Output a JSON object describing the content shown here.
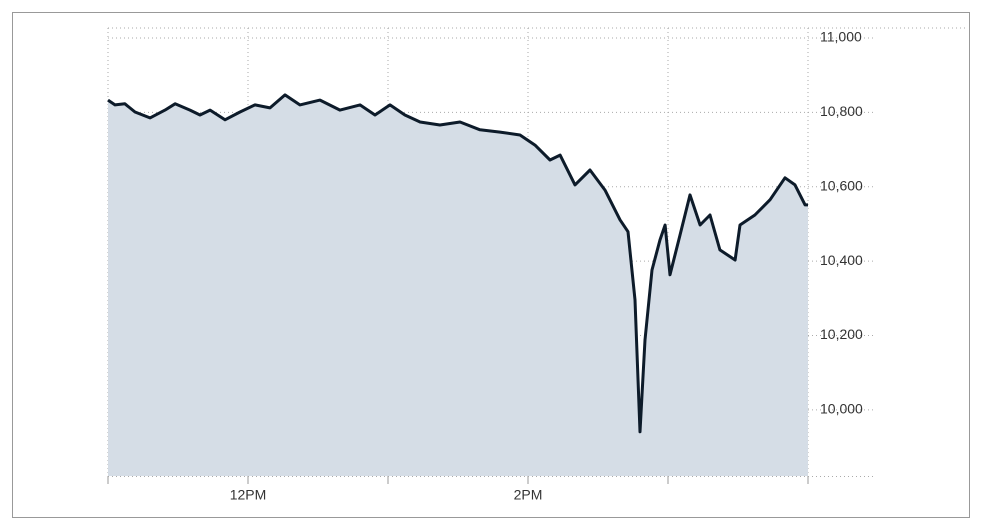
{
  "chart_data": {
    "type": "area",
    "x": [
      11,
      11.05,
      11.121,
      11.193,
      11.3,
      11.407,
      11.479,
      11.586,
      11.657,
      11.729,
      11.836,
      11.943,
      12.05,
      12.157,
      12.264,
      12.371,
      12.514,
      12.657,
      12.8,
      12.907,
      13.014,
      13.121,
      13.229,
      13.371,
      13.514,
      13.657,
      13.8,
      13.943,
      14.05,
      14.157,
      14.229,
      14.336,
      14.443,
      14.55,
      14.657,
      14.714,
      14.764,
      14.8,
      14.836,
      14.886,
      14.943,
      14.979,
      15.014,
      15.086,
      15.157,
      15.229,
      15.3,
      15.371,
      15.479,
      15.514,
      15.621,
      15.729,
      15.836,
      15.907,
      15.979,
      16
    ],
    "values": [
      10833,
      10820,
      10823,
      10801,
      10785,
      10806,
      10823,
      10806,
      10793,
      10806,
      10780,
      10801,
      10820,
      10812,
      10847,
      10820,
      10833,
      10806,
      10820,
      10793,
      10820,
      10793,
      10774,
      10766,
      10774,
      10753,
      10747,
      10739,
      10712,
      10672,
      10685,
      10605,
      10645,
      10591,
      10511,
      10479,
      10296,
      9941,
      10188,
      10376,
      10457,
      10497,
      10363,
      10470,
      10578,
      10497,
      10524,
      10430,
      10403,
      10497,
      10524,
      10565,
      10624,
      10605,
      10551,
      10551
    ],
    "line_color": "#0d1b2a",
    "fill_color": "#d5dde6",
    "xlim": [
      11,
      16
    ],
    "xticks": [
      {
        "value": 11,
        "label": null
      },
      {
        "value": 12,
        "label": "12PM"
      },
      {
        "value": 13,
        "label": null
      },
      {
        "value": 14,
        "label": "2PM"
      },
      {
        "value": 15,
        "label": null
      },
      {
        "value": 16,
        "label": null
      }
    ],
    "ylim": [
      9822,
      11000
    ],
    "yticks": [
      {
        "value": 10000,
        "label": "10,000"
      },
      {
        "value": 10200,
        "label": "10,200"
      },
      {
        "value": 10400,
        "label": "10,400"
      },
      {
        "value": 10600,
        "label": "10,600"
      },
      {
        "value": 10800,
        "label": "10,800"
      },
      {
        "value": 11000,
        "label": "11,000"
      }
    ],
    "grid": true
  }
}
